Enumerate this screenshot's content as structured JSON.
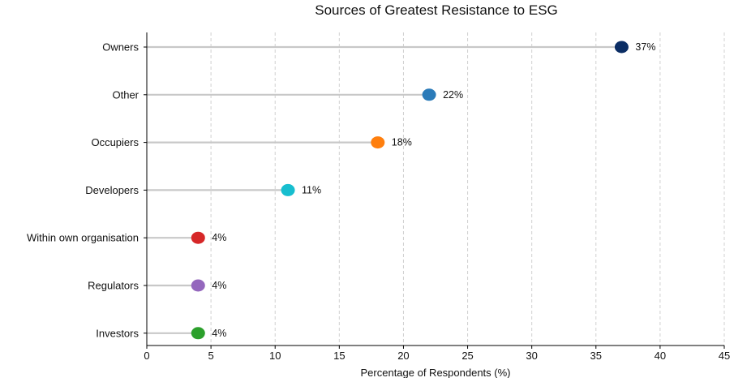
{
  "chart_data": {
    "type": "lollipop",
    "title": "Sources of Greatest Resistance to ESG",
    "xlabel": "Percentage of Respondents (%)",
    "ylabel": "",
    "xlim": [
      0,
      45
    ],
    "xticks": [
      0,
      5,
      10,
      15,
      20,
      25,
      30,
      35,
      40,
      45
    ],
    "grid": "vertical dashed",
    "categories": [
      "Owners",
      "Other",
      "Occupiers",
      "Developers",
      "Within own organisation",
      "Regulators",
      "Investors"
    ],
    "values": [
      37,
      22,
      18,
      11,
      4,
      4,
      4
    ],
    "value_labels": [
      "37%",
      "22%",
      "18%",
      "11%",
      "4%",
      "4%",
      "4%"
    ],
    "colors": [
      "#0b2d64",
      "#2b7bb9",
      "#ff7f0e",
      "#17becf",
      "#d62728",
      "#9467bd",
      "#2ca02c"
    ]
  }
}
